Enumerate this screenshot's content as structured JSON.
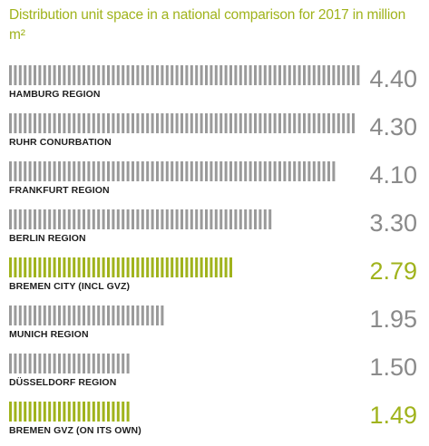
{
  "chart_data": {
    "type": "bar",
    "title": "Distribution unit space in a national comparison for 2017 in million m²",
    "categories": [
      "HAMBURG REGION",
      "RUHR CONURBATION",
      "FRANKFURT REGION",
      "BERLIN REGION",
      "BREMEN CITY (INCL GVZ)",
      "MUNICH REGION",
      "DÜSSELDORF REGION",
      "BREMEN GVZ (ON ITS OWN)"
    ],
    "values": [
      4.4,
      4.3,
      4.1,
      3.3,
      2.79,
      1.95,
      1.5,
      1.49
    ],
    "value_labels": [
      "4.40",
      "4.30",
      "4.10",
      "3.30",
      "2.79",
      "1.95",
      "1.50",
      "1.49"
    ],
    "highlighted": [
      false,
      false,
      false,
      false,
      true,
      false,
      false,
      true
    ],
    "xlim": [
      0,
      4.4
    ],
    "grid": false,
    "legend": "none"
  },
  "colors": {
    "title": "#a0b31c",
    "bar": "#9a9a9a",
    "bar_highlight": "#a0b31c",
    "value": "#8a8a8a",
    "value_highlight": "#a0b31c",
    "label": "#1e1e1e"
  }
}
